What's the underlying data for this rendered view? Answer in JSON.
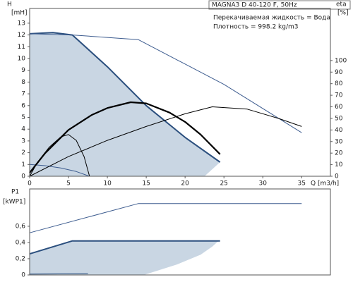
{
  "chart_data": [
    {
      "type": "line",
      "title": "MAGNA3 D 40-120 F, 50Hz",
      "info": [
        "Перекачиваемая жидкость = Вода",
        "Плотность = 998.2 kg/m3"
      ],
      "ylabel": "H",
      "yunit": "[mH]",
      "y2label": "eta",
      "y2unit": "[%]",
      "xlabel": "Q [m3/h]",
      "xlim": [
        0,
        38.7
      ],
      "xticks": [
        0,
        5,
        10,
        15,
        20,
        25,
        30,
        35
      ],
      "ylim": [
        0,
        14.25
      ],
      "yticks": [
        0,
        1,
        2,
        3,
        4,
        5,
        6,
        7,
        8,
        9,
        10,
        11,
        12,
        13
      ],
      "y2lim": [
        0,
        145
      ],
      "y2ticks": [
        0,
        10,
        20,
        30,
        40,
        50,
        60,
        70,
        80,
        90,
        100
      ],
      "series": [
        {
          "kind": "area",
          "color": "#c9d6e3",
          "x": [
            0,
            3,
            5.5,
            10,
            15,
            20,
            24.5,
            22.5
          ],
          "values": [
            12.1,
            12.2,
            12.0,
            9.3,
            6.0,
            3.3,
            1.2,
            0
          ]
        },
        {
          "kind": "line",
          "color": "#2b4f7e",
          "width": 2,
          "x": [
            0,
            3,
            5.5,
            10,
            15,
            20,
            24.5
          ],
          "values": [
            12.1,
            12.2,
            12.0,
            9.3,
            6.0,
            3.3,
            1.2
          ]
        },
        {
          "kind": "line",
          "color": "#3d5c8f",
          "width": 1,
          "x": [
            0,
            5.5,
            14,
            25,
            35
          ],
          "values": [
            12.1,
            12.0,
            11.6,
            7.8,
            3.7
          ]
        },
        {
          "kind": "line",
          "color": "#3d5c8f",
          "width": 1,
          "x": [
            0,
            2,
            4,
            6,
            7.7
          ],
          "values": [
            1.0,
            0.9,
            0.7,
            0.4,
            0
          ]
        },
        {
          "kind": "line",
          "axis": "y2",
          "color": "#000000",
          "width": 1,
          "x": [
            0,
            5,
            10,
            15,
            20,
            23.5,
            28,
            32,
            35
          ],
          "values": [
            0,
            17,
            31,
            43,
            54,
            60,
            58,
            50,
            43
          ]
        },
        {
          "kind": "line",
          "axis": "y2",
          "color": "#000000",
          "width": 2.2,
          "x": [
            0,
            2,
            5,
            8,
            10,
            13,
            15,
            18,
            20,
            22,
            24.5
          ],
          "values": [
            3,
            20,
            40,
            53,
            59,
            64,
            63,
            55,
            47,
            36,
            19
          ]
        },
        {
          "kind": "line",
          "axis": "y2",
          "color": "#000000",
          "width": 1,
          "x": [
            0,
            1,
            2.5,
            4,
            5,
            6,
            7,
            7.7
          ],
          "values": [
            0,
            12,
            25,
            34,
            36,
            31,
            17,
            0
          ]
        }
      ]
    },
    {
      "type": "line",
      "ylabel": "P1",
      "yunit": "[kWP1]",
      "xlim": [
        0,
        38.7
      ],
      "ylim": [
        0,
        1.06
      ],
      "yticks": [
        0,
        {
          "value": 0.2,
          "label": "0,2"
        },
        {
          "value": 0.4,
          "label": "0,4"
        },
        {
          "value": 0.6,
          "label": "0,6"
        }
      ],
      "series": [
        {
          "kind": "area",
          "color": "#c9d6e3",
          "x": [
            0,
            5.5,
            24.3,
            23.5,
            22,
            19,
            14.7
          ],
          "values": [
            0.26,
            0.42,
            0.42,
            0.35,
            0.25,
            0.13,
            0
          ]
        },
        {
          "kind": "line",
          "color": "#2b4f7e",
          "width": 2,
          "x": [
            0,
            5.5,
            24.5
          ],
          "values": [
            0.26,
            0.42,
            0.42
          ]
        },
        {
          "kind": "line",
          "color": "#3d5c8f",
          "width": 1,
          "x": [
            0,
            14,
            35
          ],
          "values": [
            0.52,
            0.88,
            0.88
          ]
        },
        {
          "kind": "line",
          "color": "#2b4f7e",
          "width": 1,
          "x": [
            0,
            7.5
          ],
          "values": [
            0.01,
            0.015
          ]
        }
      ]
    }
  ]
}
